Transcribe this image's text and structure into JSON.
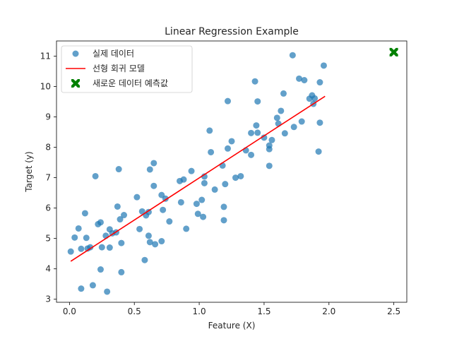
{
  "chart_data": {
    "type": "scatter",
    "title": "Linear Regression Example",
    "xlabel": "Feature (X)",
    "ylabel": "Target (y)",
    "xlim": [
      -0.1,
      2.6
    ],
    "ylim": [
      2.9,
      11.5
    ],
    "xticks": [
      0.0,
      0.5,
      1.0,
      1.5,
      2.0,
      2.5
    ],
    "xtick_labels": [
      "0.0",
      "0.5",
      "1.0",
      "1.5",
      "2.0",
      "2.5"
    ],
    "yticks": [
      3,
      4,
      5,
      6,
      7,
      8,
      9,
      10,
      11
    ],
    "ytick_labels": [
      "3",
      "4",
      "5",
      "6",
      "7",
      "8",
      "9",
      "10",
      "11"
    ],
    "grid": false,
    "legend_position": "top-left",
    "series": [
      {
        "name": "실제 데이터",
        "kind": "scatter",
        "color": "#1f77b4",
        "points": [
          [
            0.01,
            4.57
          ],
          [
            0.04,
            5.03
          ],
          [
            0.07,
            5.33
          ],
          [
            0.09,
            4.66
          ],
          [
            0.09,
            3.35
          ],
          [
            0.12,
            5.83
          ],
          [
            0.13,
            5.02
          ],
          [
            0.14,
            4.67
          ],
          [
            0.16,
            4.71
          ],
          [
            0.18,
            3.46
          ],
          [
            0.2,
            7.05
          ],
          [
            0.22,
            5.47
          ],
          [
            0.24,
            5.53
          ],
          [
            0.24,
            3.98
          ],
          [
            0.25,
            4.71
          ],
          [
            0.28,
            5.09
          ],
          [
            0.29,
            3.25
          ],
          [
            0.31,
            5.3
          ],
          [
            0.31,
            4.7
          ],
          [
            0.33,
            5.17
          ],
          [
            0.36,
            5.2
          ],
          [
            0.37,
            6.05
          ],
          [
            0.38,
            7.28
          ],
          [
            0.39,
            5.63
          ],
          [
            0.4,
            4.85
          ],
          [
            0.4,
            3.89
          ],
          [
            0.42,
            5.77
          ],
          [
            0.52,
            6.36
          ],
          [
            0.54,
            5.31
          ],
          [
            0.56,
            5.89
          ],
          [
            0.58,
            4.29
          ],
          [
            0.59,
            5.76
          ],
          [
            0.61,
            5.09
          ],
          [
            0.61,
            5.87
          ],
          [
            0.62,
            4.88
          ],
          [
            0.62,
            7.27
          ],
          [
            0.65,
            7.48
          ],
          [
            0.65,
            6.73
          ],
          [
            0.66,
            4.81
          ],
          [
            0.71,
            4.91
          ],
          [
            0.71,
            6.43
          ],
          [
            0.72,
            5.94
          ],
          [
            0.74,
            6.31
          ],
          [
            0.77,
            5.56
          ],
          [
            0.85,
            6.89
          ],
          [
            0.86,
            6.19
          ],
          [
            0.88,
            6.94
          ],
          [
            0.9,
            5.32
          ],
          [
            0.94,
            7.22
          ],
          [
            0.98,
            6.14
          ],
          [
            0.99,
            5.81
          ],
          [
            1.02,
            6.27
          ],
          [
            1.03,
            5.71
          ],
          [
            1.04,
            7.04
          ],
          [
            1.04,
            6.82
          ],
          [
            1.08,
            8.55
          ],
          [
            1.09,
            7.84
          ],
          [
            1.12,
            6.61
          ],
          [
            1.18,
            7.4
          ],
          [
            1.19,
            6.04
          ],
          [
            1.19,
            5.6
          ],
          [
            1.2,
            6.79
          ],
          [
            1.22,
            9.52
          ],
          [
            1.22,
            7.96
          ],
          [
            1.25,
            8.2
          ],
          [
            1.28,
            7.0
          ],
          [
            1.32,
            7.05
          ],
          [
            1.36,
            7.9
          ],
          [
            1.4,
            7.75
          ],
          [
            1.4,
            8.47
          ],
          [
            1.43,
            10.17
          ],
          [
            1.44,
            8.72
          ],
          [
            1.45,
            8.48
          ],
          [
            1.45,
            9.51
          ],
          [
            1.5,
            8.32
          ],
          [
            1.54,
            8.06
          ],
          [
            1.54,
            7.39
          ],
          [
            1.54,
            7.94
          ],
          [
            1.56,
            8.24
          ],
          [
            1.6,
            8.97
          ],
          [
            1.61,
            8.78
          ],
          [
            1.63,
            9.2
          ],
          [
            1.65,
            9.77
          ],
          [
            1.66,
            8.46
          ],
          [
            1.72,
            11.03
          ],
          [
            1.73,
            8.67
          ],
          [
            1.77,
            10.26
          ],
          [
            1.79,
            8.85
          ],
          [
            1.81,
            10.21
          ],
          [
            1.85,
            9.6
          ],
          [
            1.87,
            9.71
          ],
          [
            1.88,
            9.43
          ],
          [
            1.89,
            9.61
          ],
          [
            1.92,
            7.86
          ],
          [
            1.93,
            8.81
          ],
          [
            1.93,
            10.14
          ],
          [
            1.96,
            10.69
          ]
        ]
      },
      {
        "name": "선형 회귀 모델",
        "kind": "line",
        "color": "#ff0000",
        "points": [
          [
            0.01,
            4.25
          ],
          [
            1.97,
            9.68
          ]
        ]
      },
      {
        "name": "새로운 데이터 예측값",
        "kind": "marker",
        "marker": "X",
        "color": "#008000",
        "points": [
          [
            2.5,
            11.13
          ]
        ]
      }
    ]
  }
}
